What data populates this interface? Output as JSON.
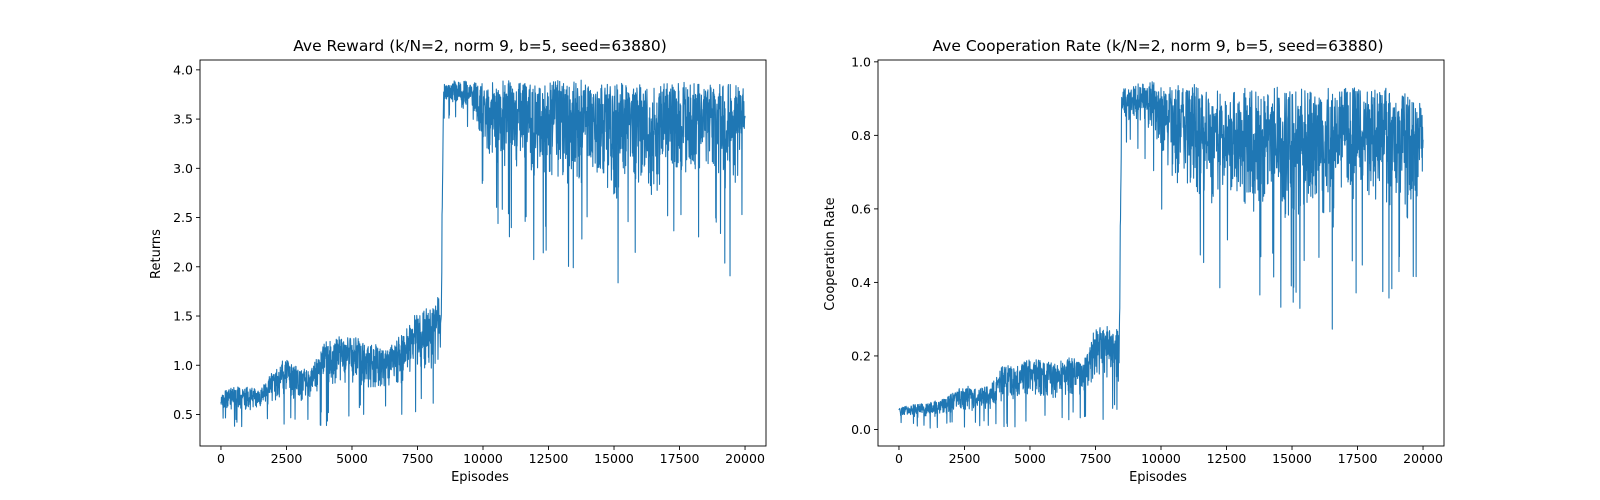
{
  "chart_data": [
    {
      "type": "line",
      "title": "Ave Reward (k/N=2, norm 9, b=5, seed=63880)",
      "xlabel": "Episodes",
      "ylabel": "Returns",
      "xlim": [
        -800,
        20800
      ],
      "ylim": [
        0.18,
        4.1
      ],
      "xticks": [
        0,
        2500,
        5000,
        7500,
        10000,
        12500,
        15000,
        17500,
        20000
      ],
      "xtick_labels": [
        "0",
        "2500",
        "5000",
        "7500",
        "10000",
        "12500",
        "15000",
        "17500",
        "20000"
      ],
      "yticks": [
        0.5,
        1.0,
        1.5,
        2.0,
        2.5,
        3.0,
        3.5,
        4.0
      ],
      "ytick_labels": [
        "0.5",
        "1.0",
        "1.5",
        "2.0",
        "2.5",
        "3.0",
        "3.5",
        "4.0"
      ],
      "grid": false,
      "color": "#1f77b4",
      "series": [
        {
          "x": [
            0,
            500,
            1000,
            1500,
            2000,
            2500,
            3000,
            3500,
            4000,
            4500,
            5000,
            5500,
            6000,
            6500,
            7000,
            7500,
            8000,
            8400,
            8500,
            9000,
            9500,
            10000,
            10500,
            11000,
            11500,
            12000,
            12500,
            13000,
            13500,
            14000,
            14500,
            15000,
            15500,
            16000,
            16500,
            17000,
            17500,
            18000,
            18500,
            19000,
            19500,
            20000
          ],
          "y_min": [
            0.45,
            0.35,
            0.36,
            0.37,
            0.38,
            0.38,
            0.37,
            0.38,
            0.38,
            0.38,
            0.39,
            0.38,
            0.39,
            0.4,
            0.4,
            0.41,
            0.42,
            0.41,
            3.5,
            3.45,
            3.3,
            2.7,
            2.4,
            2.2,
            2.3,
            2.0,
            2.2,
            2.0,
            1.7,
            2.2,
            2.0,
            1.65,
            2.0,
            2.0,
            1.7,
            2.3,
            2.2,
            2.2,
            2.3,
            2.2,
            1.65,
            2.6
          ],
          "y_max": [
            0.72,
            0.78,
            0.78,
            0.75,
            0.95,
            1.1,
            0.95,
            1.0,
            1.25,
            1.3,
            1.3,
            1.25,
            1.2,
            1.2,
            1.35,
            1.55,
            1.6,
            1.8,
            3.85,
            3.9,
            3.88,
            3.87,
            3.88,
            3.9,
            3.87,
            3.86,
            3.88,
            3.9,
            3.92,
            3.88,
            3.87,
            3.87,
            3.86,
            3.86,
            3.85,
            3.86,
            3.88,
            3.86,
            3.86,
            3.85,
            3.86,
            3.8
          ]
        }
      ]
    },
    {
      "type": "line",
      "title": "Ave Cooperation Rate (k/N=2, norm 9, b=5, seed=63880)",
      "xlabel": "Episodes",
      "ylabel": "Cooperation Rate",
      "xlim": [
        -800,
        20800
      ],
      "ylim": [
        -0.045,
        1.005
      ],
      "xticks": [
        0,
        2500,
        5000,
        7500,
        10000,
        12500,
        15000,
        17500,
        20000
      ],
      "xtick_labels": [
        "0",
        "2500",
        "5000",
        "7500",
        "10000",
        "12500",
        "15000",
        "17500",
        "20000"
      ],
      "yticks": [
        0.0,
        0.2,
        0.4,
        0.6,
        0.8,
        1.0
      ],
      "ytick_labels": [
        "0.0",
        "0.2",
        "0.4",
        "0.6",
        "0.8",
        "1.0"
      ],
      "grid": false,
      "color": "#1f77b4",
      "series": [
        {
          "x": [
            0,
            500,
            1000,
            1500,
            2000,
            2500,
            3000,
            3500,
            4000,
            4500,
            5000,
            5500,
            6000,
            6500,
            7000,
            7500,
            8000,
            8400,
            8500,
            9000,
            9500,
            10000,
            10500,
            11000,
            11500,
            12000,
            12500,
            13000,
            13500,
            14000,
            14500,
            15000,
            15500,
            16000,
            16500,
            17000,
            17500,
            18000,
            18500,
            19000,
            19500,
            20000
          ],
          "y_min": [
            0.01,
            0.0,
            0.0,
            0.0,
            0.0,
            0.0,
            0.0,
            0.0,
            0.0,
            0.0,
            0.01,
            0.0,
            0.01,
            0.01,
            0.01,
            0.01,
            0.02,
            0.01,
            0.76,
            0.76,
            0.72,
            0.58,
            0.45,
            0.43,
            0.4,
            0.3,
            0.42,
            0.38,
            0.27,
            0.38,
            0.3,
            0.26,
            0.35,
            0.35,
            0.2,
            0.38,
            0.36,
            0.4,
            0.3,
            0.35,
            0.22,
            0.52
          ],
          "y_max": [
            0.06,
            0.07,
            0.07,
            0.08,
            0.1,
            0.12,
            0.11,
            0.12,
            0.18,
            0.17,
            0.2,
            0.19,
            0.18,
            0.2,
            0.18,
            0.28,
            0.28,
            0.27,
            0.93,
            0.94,
            0.95,
            0.94,
            0.93,
            0.95,
            0.93,
            0.93,
            0.92,
            0.94,
            0.93,
            0.94,
            0.93,
            0.92,
            0.93,
            0.92,
            0.93,
            0.93,
            0.93,
            0.92,
            0.93,
            0.92,
            0.93,
            0.9
          ]
        }
      ]
    }
  ]
}
